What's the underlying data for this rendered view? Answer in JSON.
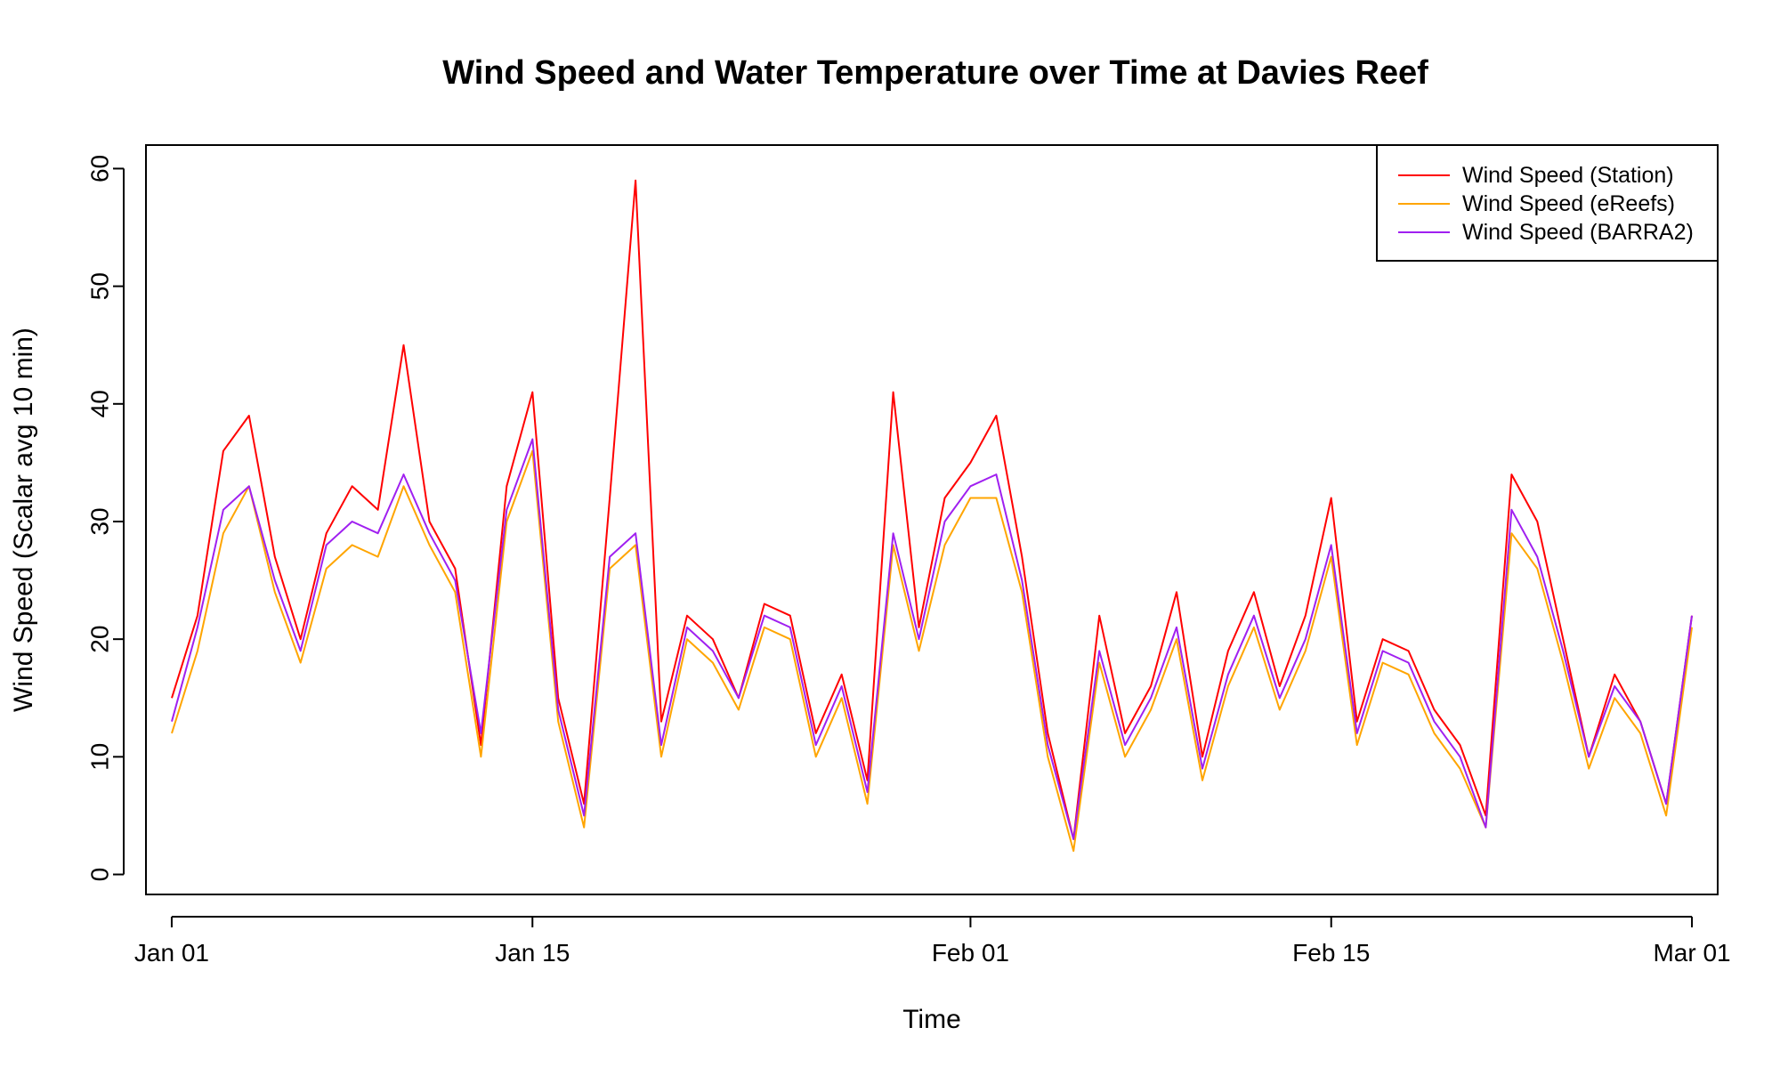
{
  "chart_data": {
    "type": "line",
    "title": "Wind Speed and Water Temperature over Time at Davies Reef",
    "xlabel": "Time",
    "ylabel": "Wind Speed (Scalar avg 10 min)",
    "xlim": [
      "2024-12-31",
      "2025-03-02"
    ],
    "ylim": [
      -1.7,
      62
    ],
    "x_ticks": [
      {
        "date": "2025-01-01",
        "label": "Jan 01"
      },
      {
        "date": "2025-01-15",
        "label": "Jan 15"
      },
      {
        "date": "2025-02-01",
        "label": "Feb 01"
      },
      {
        "date": "2025-02-15",
        "label": "Feb 15"
      },
      {
        "date": "2025-03-01",
        "label": "Mar 01"
      }
    ],
    "y_ticks": [
      0,
      10,
      20,
      30,
      40,
      50,
      60
    ],
    "legend_position": "top-right",
    "grid": false,
    "series": [
      {
        "name": "Wind Speed (Station)",
        "color": "#ff0000",
        "x": [
          "2025-01-01",
          "2025-01-02",
          "2025-01-03",
          "2025-01-04",
          "2025-01-05",
          "2025-01-06",
          "2025-01-07",
          "2025-01-08",
          "2025-01-09",
          "2025-01-10",
          "2025-01-11",
          "2025-01-12",
          "2025-01-13",
          "2025-01-14",
          "2025-01-15",
          "2025-01-16",
          "2025-01-17",
          "2025-01-18",
          "2025-01-19",
          "2025-01-20",
          "2025-01-21",
          "2025-01-22",
          "2025-01-23",
          "2025-01-24",
          "2025-01-25",
          "2025-01-26",
          "2025-01-27",
          "2025-01-28",
          "2025-01-29",
          "2025-01-30",
          "2025-01-31",
          "2025-02-01",
          "2025-02-02",
          "2025-02-03",
          "2025-02-04",
          "2025-02-05",
          "2025-02-06",
          "2025-02-07",
          "2025-02-08",
          "2025-02-09",
          "2025-02-10",
          "2025-02-11",
          "2025-02-12",
          "2025-02-13",
          "2025-02-14",
          "2025-02-15",
          "2025-02-16",
          "2025-02-17",
          "2025-02-18",
          "2025-02-19",
          "2025-02-20",
          "2025-02-21",
          "2025-02-22",
          "2025-02-23",
          "2025-02-24",
          "2025-02-25",
          "2025-02-26",
          "2025-02-27",
          "2025-02-28",
          "2025-03-01"
        ],
        "values": [
          15,
          22,
          36,
          39,
          27,
          20,
          29,
          33,
          31,
          45,
          30,
          26,
          11,
          33,
          41,
          15,
          6,
          32,
          59,
          13,
          22,
          20,
          15,
          23,
          22,
          12,
          17,
          8,
          41,
          21,
          32,
          35,
          39,
          27,
          12,
          3,
          22,
          12,
          16,
          24,
          10,
          19,
          24,
          16,
          22,
          32,
          13,
          20,
          19,
          14,
          11,
          5,
          34,
          30,
          20,
          10,
          17,
          13,
          6,
          22
        ]
      },
      {
        "name": "Wind Speed (eReefs)",
        "color": "#ffa500",
        "x": [
          "2025-01-01",
          "2025-01-02",
          "2025-01-03",
          "2025-01-04",
          "2025-01-05",
          "2025-01-06",
          "2025-01-07",
          "2025-01-08",
          "2025-01-09",
          "2025-01-10",
          "2025-01-11",
          "2025-01-12",
          "2025-01-13",
          "2025-01-14",
          "2025-01-15",
          "2025-01-16",
          "2025-01-17",
          "2025-01-18",
          "2025-01-19",
          "2025-01-20",
          "2025-01-21",
          "2025-01-22",
          "2025-01-23",
          "2025-01-24",
          "2025-01-25",
          "2025-01-26",
          "2025-01-27",
          "2025-01-28",
          "2025-01-29",
          "2025-01-30",
          "2025-01-31",
          "2025-02-01",
          "2025-02-02",
          "2025-02-03",
          "2025-02-04",
          "2025-02-05",
          "2025-02-06",
          "2025-02-07",
          "2025-02-08",
          "2025-02-09",
          "2025-02-10",
          "2025-02-11",
          "2025-02-12",
          "2025-02-13",
          "2025-02-14",
          "2025-02-15",
          "2025-02-16",
          "2025-02-17",
          "2025-02-18",
          "2025-02-19",
          "2025-02-20",
          "2025-02-21",
          "2025-02-22",
          "2025-02-23",
          "2025-02-24",
          "2025-02-25",
          "2025-02-26",
          "2025-02-27",
          "2025-02-28",
          "2025-03-01"
        ],
        "values": [
          12,
          19,
          29,
          33,
          24,
          18,
          26,
          28,
          27,
          33,
          28,
          24,
          10,
          30,
          36,
          13,
          4,
          26,
          28,
          10,
          20,
          18,
          14,
          21,
          20,
          10,
          15,
          6,
          28,
          19,
          28,
          32,
          32,
          24,
          10,
          2,
          18,
          10,
          14,
          20,
          8,
          16,
          21,
          14,
          19,
          27,
          11,
          18,
          17,
          12,
          9,
          4,
          29,
          26,
          18,
          9,
          15,
          12,
          5,
          21
        ]
      },
      {
        "name": "Wind Speed (BARRA2)",
        "color": "#a020f0",
        "x": [
          "2025-01-01",
          "2025-01-02",
          "2025-01-03",
          "2025-01-04",
          "2025-01-05",
          "2025-01-06",
          "2025-01-07",
          "2025-01-08",
          "2025-01-09",
          "2025-01-10",
          "2025-01-11",
          "2025-01-12",
          "2025-01-13",
          "2025-01-14",
          "2025-01-15",
          "2025-01-16",
          "2025-01-17",
          "2025-01-18",
          "2025-01-19",
          "2025-01-20",
          "2025-01-21",
          "2025-01-22",
          "2025-01-23",
          "2025-01-24",
          "2025-01-25",
          "2025-01-26",
          "2025-01-27",
          "2025-01-28",
          "2025-01-29",
          "2025-01-30",
          "2025-01-31",
          "2025-02-01",
          "2025-02-02",
          "2025-02-03",
          "2025-02-04",
          "2025-02-05",
          "2025-02-06",
          "2025-02-07",
          "2025-02-08",
          "2025-02-09",
          "2025-02-10",
          "2025-02-11",
          "2025-02-12",
          "2025-02-13",
          "2025-02-14",
          "2025-02-15",
          "2025-02-16",
          "2025-02-17",
          "2025-02-18",
          "2025-02-19",
          "2025-02-20",
          "2025-02-21",
          "2025-02-22",
          "2025-02-23",
          "2025-02-24",
          "2025-02-25",
          "2025-02-26",
          "2025-02-27",
          "2025-02-28",
          "2025-03-01"
        ],
        "values": [
          13,
          21,
          31,
          33,
          25,
          19,
          28,
          30,
          29,
          34,
          29,
          25,
          12,
          31,
          37,
          14,
          5,
          27,
          29,
          11,
          21,
          19,
          15,
          22,
          21,
          11,
          16,
          7,
          29,
          20,
          30,
          33,
          34,
          25,
          11,
          3,
          19,
          11,
          15,
          21,
          9,
          17,
          22,
          15,
          20,
          28,
          12,
          19,
          18,
          13,
          10,
          4,
          31,
          27,
          19,
          10,
          16,
          13,
          6,
          22
        ]
      }
    ]
  }
}
